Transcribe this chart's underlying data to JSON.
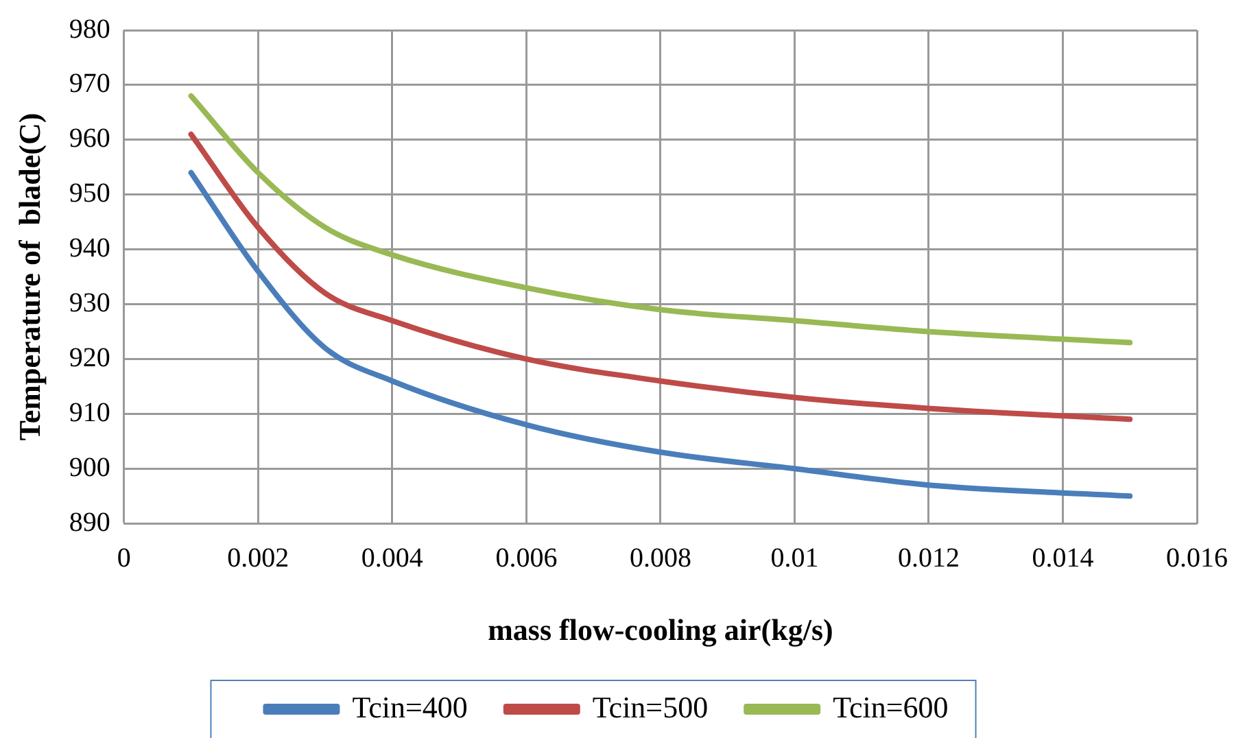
{
  "chart_data": {
    "type": "line",
    "xlabel": "mass flow-cooling air(kg/s)",
    "ylabel": "Temperature of  blade(C)",
    "xlim": [
      0,
      0.016
    ],
    "xticks": [
      0,
      0.002,
      0.004,
      0.006,
      0.008,
      0.01,
      0.012,
      0.014,
      0.016
    ],
    "ylim": [
      890,
      980
    ],
    "yticks": [
      890,
      900,
      910,
      920,
      930,
      940,
      950,
      960,
      970,
      980
    ],
    "x": [
      0.001,
      0.002,
      0.003,
      0.004,
      0.006,
      0.008,
      0.01,
      0.012,
      0.015
    ],
    "series": [
      {
        "name": "Tcin=400",
        "color": "#4a7ebb",
        "values": [
          954,
          936,
          922,
          916,
          908,
          903,
          900,
          897,
          895
        ]
      },
      {
        "name": "Tcin=500",
        "color": "#be4b48",
        "values": [
          961,
          944,
          932,
          927,
          920,
          916,
          913,
          911,
          909
        ]
      },
      {
        "name": "Tcin=600",
        "color": "#98b954",
        "values": [
          968,
          954,
          944,
          939,
          933,
          929,
          927,
          925,
          923
        ]
      }
    ],
    "grid": true,
    "legend": "bottom",
    "marker": "none",
    "line_style": "solid"
  }
}
